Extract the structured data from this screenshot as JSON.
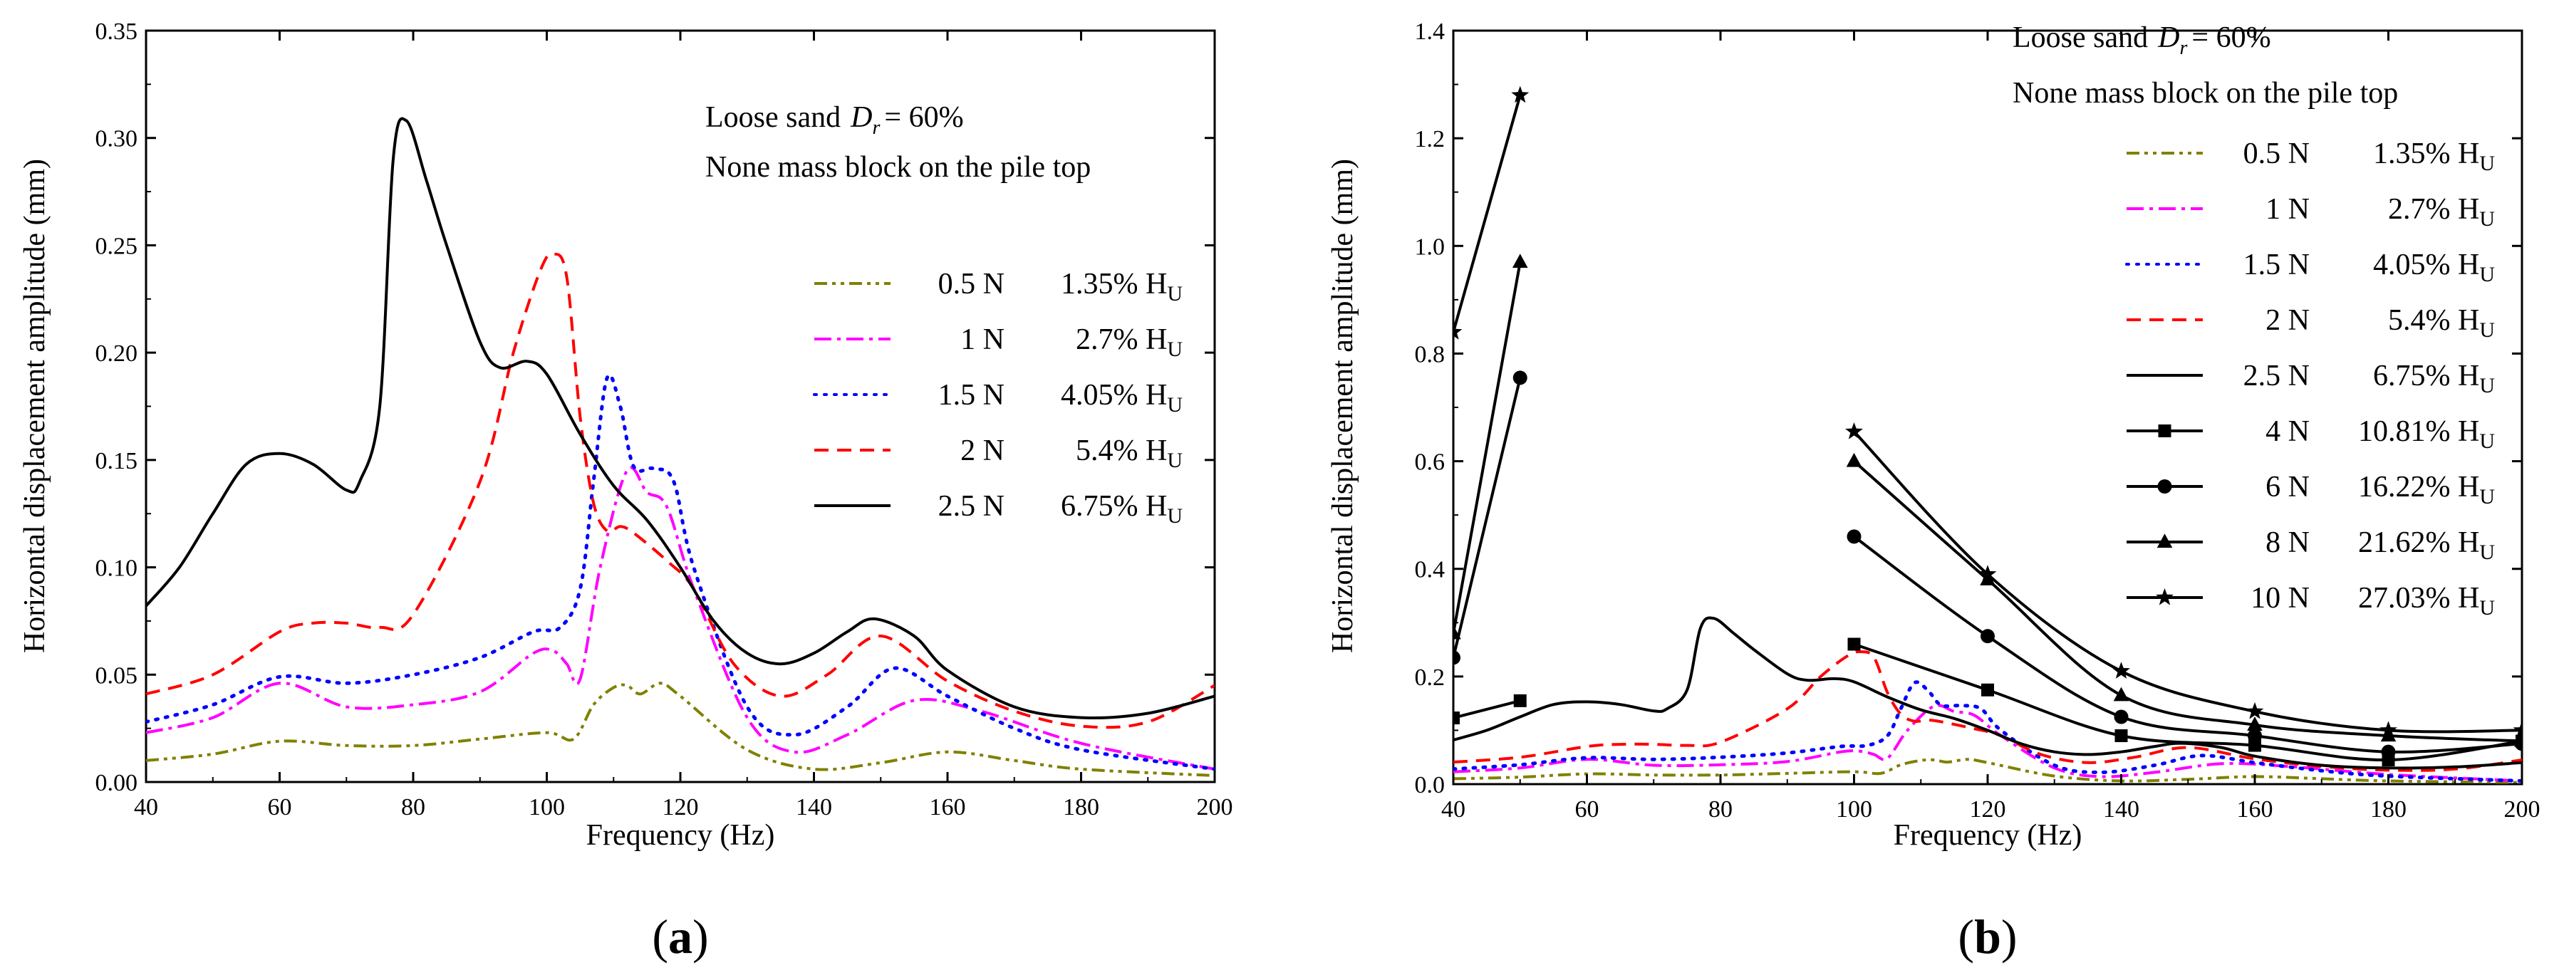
{
  "figure": {
    "panels": [
      {
        "label": "a",
        "annotation": {
          "sand": "Loose sand",
          "dr": "= 60%",
          "mass": "None mass block on the pile top"
        }
      },
      {
        "label": "b",
        "annotation": {
          "sand": "Loose sand",
          "dr": "= 60%",
          "mass": "None mass block on the pile top"
        }
      }
    ]
  },
  "colors": {
    "olive": "#808000",
    "magenta": "#ff00ff",
    "blue": "#0000ff",
    "red": "#ff0000",
    "black": "#000000"
  },
  "chart_data": [
    {
      "type": "line",
      "panel": "a",
      "xlabel": "Frequency (Hz)",
      "ylabel": "Horizontal displacement amplitude (mm)",
      "xlim": [
        40,
        200
      ],
      "ylim": [
        0,
        0.35
      ],
      "xticks": [
        "40",
        "60",
        "80",
        "100",
        "120",
        "140",
        "160",
        "180",
        "200"
      ],
      "yticks": [
        "0.00",
        "0.05",
        "0.10",
        "0.15",
        "0.20",
        "0.25",
        "0.30",
        "0.35"
      ],
      "legend_position": "top-right",
      "series": [
        {
          "name": "0.5 N",
          "pct": "1.35% H",
          "sub": "U",
          "style": "dashdotdot",
          "color": "#808000",
          "x": [
            40,
            50,
            60,
            70,
            80,
            90,
            100,
            104,
            107,
            110,
            112,
            114,
            117,
            120,
            130,
            140,
            150,
            160,
            170,
            180,
            200
          ],
          "y": [
            0.01,
            0.013,
            0.019,
            0.017,
            0.017,
            0.02,
            0.023,
            0.02,
            0.036,
            0.044,
            0.045,
            0.041,
            0.046,
            0.04,
            0.015,
            0.006,
            0.009,
            0.014,
            0.01,
            0.006,
            0.003
          ]
        },
        {
          "name": "1 N",
          "pct": "2.7% H",
          "sub": "U",
          "style": "dashdot",
          "color": "#ff00ff",
          "x": [
            40,
            50,
            60,
            70,
            80,
            90,
            98,
            101,
            103,
            105,
            108,
            112,
            115,
            118,
            122,
            130,
            137,
            145,
            155,
            165,
            180,
            200
          ],
          "y": [
            0.023,
            0.03,
            0.046,
            0.035,
            0.036,
            0.042,
            0.06,
            0.061,
            0.055,
            0.048,
            0.1,
            0.145,
            0.135,
            0.128,
            0.09,
            0.03,
            0.014,
            0.022,
            0.038,
            0.033,
            0.018,
            0.006
          ]
        },
        {
          "name": "1.5 N",
          "pct": "4.05% H",
          "sub": "U",
          "style": "dotted",
          "color": "#0000ff",
          "x": [
            40,
            50,
            60,
            70,
            80,
            90,
            98,
            102,
            105,
            107,
            109,
            111,
            113,
            116,
            119,
            122,
            130,
            137,
            145,
            152,
            160,
            170,
            180,
            200
          ],
          "y": [
            0.028,
            0.036,
            0.049,
            0.046,
            0.05,
            0.058,
            0.07,
            0.072,
            0.09,
            0.14,
            0.188,
            0.175,
            0.147,
            0.146,
            0.14,
            0.1,
            0.035,
            0.022,
            0.035,
            0.053,
            0.04,
            0.025,
            0.015,
            0.006
          ]
        },
        {
          "name": "2 N",
          "pct": "5.4% H",
          "sub": "U",
          "style": "dashed",
          "color": "#ff0000",
          "x": [
            40,
            50,
            60,
            65,
            70,
            75,
            80,
            90,
            95,
            99,
            101,
            103,
            105,
            107,
            109,
            111,
            113,
            118,
            122,
            128,
            135,
            142,
            150,
            160,
            170,
            180,
            190,
            200
          ],
          "y": [
            0.041,
            0.05,
            0.07,
            0.074,
            0.074,
            0.072,
            0.078,
            0.14,
            0.2,
            0.238,
            0.246,
            0.235,
            0.17,
            0.13,
            0.117,
            0.119,
            0.116,
            0.103,
            0.09,
            0.055,
            0.04,
            0.05,
            0.068,
            0.047,
            0.033,
            0.026,
            0.028,
            0.045
          ]
        },
        {
          "name": "2.5 N",
          "pct": "6.75% H",
          "sub": "U",
          "style": "solid",
          "color": "#000000",
          "x": [
            40,
            45,
            50,
            55,
            60,
            65,
            70,
            72,
            75,
            77,
            79,
            82,
            85,
            90,
            93,
            97,
            100,
            105,
            110,
            115,
            120,
            125,
            130,
            135,
            140,
            145,
            149,
            155,
            160,
            170,
            180,
            190,
            200
          ],
          "y": [
            0.082,
            0.1,
            0.125,
            0.148,
            0.153,
            0.148,
            0.136,
            0.14,
            0.175,
            0.29,
            0.308,
            0.28,
            0.25,
            0.205,
            0.193,
            0.196,
            0.19,
            0.162,
            0.138,
            0.122,
            0.1,
            0.075,
            0.06,
            0.055,
            0.06,
            0.07,
            0.076,
            0.068,
            0.052,
            0.035,
            0.03,
            0.032,
            0.04
          ]
        }
      ]
    },
    {
      "type": "line",
      "panel": "b",
      "xlabel": "Frequency (Hz)",
      "ylabel": "Horizontal displacement amplitude (mm)",
      "xlim": [
        40,
        200
      ],
      "ylim": [
        0,
        1.4
      ],
      "xticks": [
        "40",
        "60",
        "80",
        "100",
        "120",
        "140",
        "160",
        "180",
        "200"
      ],
      "yticks": [
        "0.0",
        "0.2",
        "0.4",
        "0.6",
        "0.8",
        "1.0",
        "1.2",
        "1.4"
      ],
      "legend_position": "top-right",
      "series": [
        {
          "name": "0.5 N",
          "pct": "1.35% H",
          "sub": "U",
          "style": "dashdotdot",
          "color": "#808000",
          "x": [
            40,
            50,
            60,
            70,
            80,
            90,
            100,
            104,
            107,
            110,
            112,
            114,
            117,
            120,
            130,
            140,
            150,
            160,
            170,
            180,
            200
          ],
          "y": [
            0.01,
            0.013,
            0.019,
            0.017,
            0.017,
            0.02,
            0.023,
            0.02,
            0.036,
            0.044,
            0.045,
            0.041,
            0.046,
            0.04,
            0.015,
            0.006,
            0.009,
            0.014,
            0.01,
            0.006,
            0.003
          ]
        },
        {
          "name": "1 N",
          "pct": "2.7% H",
          "sub": "U",
          "style": "dashdot",
          "color": "#ff00ff",
          "x": [
            40,
            50,
            60,
            70,
            80,
            90,
            98,
            101,
            103,
            105,
            108,
            112,
            115,
            118,
            122,
            130,
            137,
            145,
            155,
            165,
            180,
            200
          ],
          "y": [
            0.023,
            0.03,
            0.046,
            0.035,
            0.036,
            0.042,
            0.06,
            0.061,
            0.055,
            0.048,
            0.1,
            0.145,
            0.135,
            0.128,
            0.09,
            0.03,
            0.014,
            0.022,
            0.038,
            0.033,
            0.018,
            0.006
          ]
        },
        {
          "name": "1.5 N",
          "pct": "4.05% H",
          "sub": "U",
          "style": "dotted",
          "color": "#0000ff",
          "x": [
            40,
            50,
            60,
            70,
            80,
            90,
            98,
            102,
            105,
            107,
            109,
            111,
            113,
            116,
            119,
            122,
            130,
            137,
            145,
            152,
            160,
            170,
            180,
            200
          ],
          "y": [
            0.028,
            0.036,
            0.049,
            0.046,
            0.05,
            0.058,
            0.07,
            0.072,
            0.09,
            0.14,
            0.188,
            0.175,
            0.147,
            0.146,
            0.14,
            0.1,
            0.035,
            0.022,
            0.035,
            0.053,
            0.04,
            0.025,
            0.015,
            0.006
          ]
        },
        {
          "name": "2 N",
          "pct": "5.4% H",
          "sub": "U",
          "style": "dashed",
          "color": "#ff0000",
          "x": [
            40,
            50,
            60,
            65,
            70,
            75,
            80,
            90,
            95,
            99,
            101,
            103,
            105,
            107,
            109,
            111,
            113,
            118,
            122,
            128,
            135,
            142,
            150,
            160,
            170,
            180,
            190,
            200
          ],
          "y": [
            0.041,
            0.05,
            0.07,
            0.074,
            0.074,
            0.072,
            0.078,
            0.14,
            0.2,
            0.238,
            0.246,
            0.235,
            0.17,
            0.13,
            0.117,
            0.119,
            0.116,
            0.103,
            0.09,
            0.055,
            0.04,
            0.05,
            0.068,
            0.047,
            0.033,
            0.026,
            0.028,
            0.045
          ]
        },
        {
          "name": "2.5 N",
          "pct": "6.75% H",
          "sub": "U",
          "style": "solid",
          "color": "#000000",
          "x": [
            40,
            45,
            50,
            55,
            60,
            65,
            70,
            72,
            75,
            77,
            79,
            82,
            85,
            90,
            93,
            97,
            100,
            105,
            110,
            115,
            120,
            125,
            130,
            135,
            140,
            145,
            149,
            155,
            160,
            170,
            180,
            190,
            200
          ],
          "y": [
            0.082,
            0.1,
            0.125,
            0.148,
            0.153,
            0.148,
            0.136,
            0.14,
            0.175,
            0.29,
            0.308,
            0.28,
            0.25,
            0.205,
            0.193,
            0.196,
            0.19,
            0.162,
            0.138,
            0.122,
            0.1,
            0.075,
            0.06,
            0.055,
            0.06,
            0.07,
            0.076,
            0.068,
            0.052,
            0.035,
            0.03,
            0.032,
            0.04
          ]
        },
        {
          "name": "4 N",
          "pct": "10.81% H",
          "sub": "U",
          "style": "solid",
          "marker": "square",
          "color": "#000000",
          "segments": [
            {
              "x": [
                40,
                50
              ],
              "y": [
                0.123,
                0.155
              ]
            },
            {
              "x": [
                100,
                120,
                140,
                160,
                180,
                200
              ],
              "y": [
                0.26,
                0.175,
                0.09,
                0.072,
                0.045,
                0.08
              ]
            }
          ]
        },
        {
          "name": "6 N",
          "pct": "16.22% H",
          "sub": "U",
          "style": "solid",
          "marker": "circle",
          "color": "#000000",
          "segments": [
            {
              "x": [
                40,
                50
              ],
              "y": [
                0.235,
                0.755
              ]
            },
            {
              "x": [
                100,
                120,
                140,
                160,
                180,
                200
              ],
              "y": [
                0.46,
                0.275,
                0.125,
                0.09,
                0.06,
                0.075
              ]
            }
          ]
        },
        {
          "name": "8 N",
          "pct": "21.62% H",
          "sub": "U",
          "style": "solid",
          "marker": "triangle",
          "color": "#000000",
          "segments": [
            {
              "x": [
                40,
                50
              ],
              "y": [
                0.28,
                0.97
              ]
            },
            {
              "x": [
                100,
                120,
                140,
                160,
                180,
                200
              ],
              "y": [
                0.6,
                0.38,
                0.165,
                0.11,
                0.09,
                0.08
              ]
            }
          ]
        },
        {
          "name": "10 N",
          "pct": "27.03% H",
          "sub": "U",
          "style": "solid",
          "marker": "star",
          "color": "#000000",
          "segments": [
            {
              "x": [
                40,
                50
              ],
              "y": [
                0.84,
                1.28
              ]
            },
            {
              "x": [
                100,
                120,
                140,
                160,
                180,
                200
              ],
              "y": [
                0.655,
                0.39,
                0.21,
                0.135,
                0.1,
                0.1
              ]
            }
          ]
        }
      ]
    }
  ]
}
